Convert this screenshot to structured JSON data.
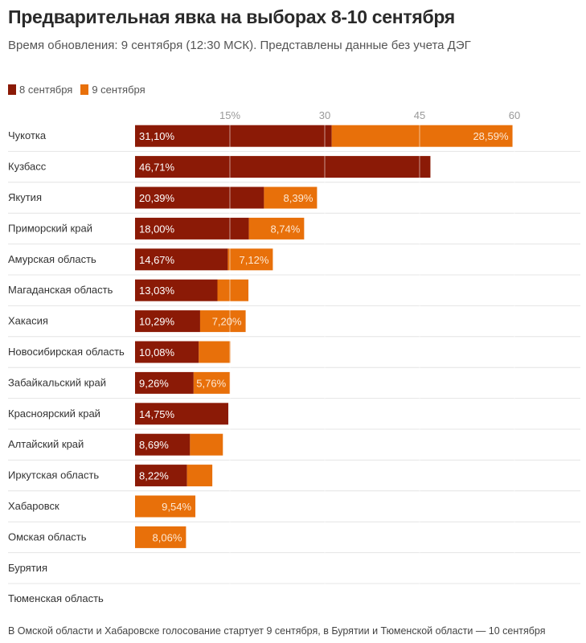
{
  "title": "Предварительная явка на выборах 8-10 сентября",
  "subtitle": "Время обновления: 9 сентября (12:30 МСК). Представлены данные без учета ДЭГ",
  "footnote": "В Омской области и Хабаровске голосование стартует 9 сентября, в Бурятии и Тюменской области — 10 сентября",
  "chart_data": {
    "type": "bar",
    "orientation": "horizontal",
    "stacked": true,
    "title": "Предварительная явка на выборах 8-10 сентября",
    "xlim": [
      0,
      60
    ],
    "x_ticks": [
      15,
      30,
      45,
      60
    ],
    "x_tick_labels": [
      "15%",
      "30",
      "45",
      "60"
    ],
    "grid": true,
    "legend_position": "top-left",
    "categories": [
      "Чукотка",
      "Кузбасс",
      "Якутия",
      "Приморский край",
      "Амурская область",
      "Магаданская область",
      "Хакасия",
      "Новосибирская область",
      "Забайкальский край",
      "Красноярский край",
      "Алтайский край",
      "Иркутская область",
      "Хабаровск",
      "Омская область",
      "Бурятия",
      "Тюменская область"
    ],
    "series": [
      {
        "name": "8 сентября",
        "color": "#8b1a06",
        "values": [
          31.1,
          46.71,
          20.39,
          18.0,
          14.67,
          13.03,
          10.29,
          10.08,
          9.26,
          14.75,
          8.69,
          8.22,
          0,
          0,
          0,
          0
        ],
        "labels": [
          "31,10%",
          "46,71%",
          "20,39%",
          "18,00%",
          "14,67%",
          "13,03%",
          "10,29%",
          "10,08%",
          "9,26%",
          "14,75%",
          "8,69%",
          "8,22%",
          "",
          "",
          "",
          ""
        ]
      },
      {
        "name": "9 сентября",
        "color": "#e8700a",
        "values": [
          28.59,
          0,
          8.39,
          8.74,
          7.12,
          4.9,
          7.2,
          5.0,
          5.76,
          0,
          5.2,
          4.0,
          9.54,
          8.06,
          0,
          0
        ],
        "labels": [
          "28,59%",
          "",
          "8,39%",
          "8,74%",
          "7,12%",
          "",
          "7,20%",
          "",
          "5,76%",
          "",
          "",
          "",
          "9,54%",
          "8,06%",
          "",
          ""
        ]
      }
    ]
  }
}
